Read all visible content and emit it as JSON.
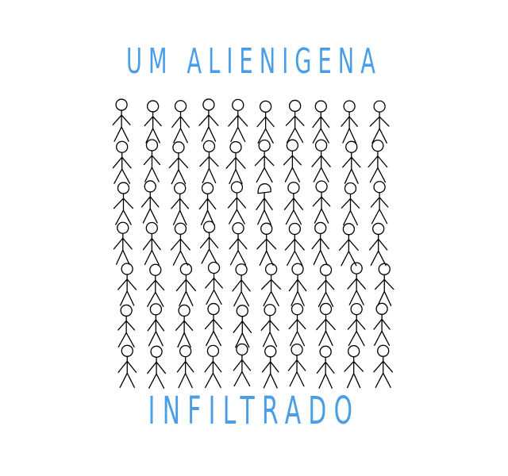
{
  "title_top": "UM ALIENIGENA",
  "title_bottom": "INFILTRADO",
  "colors": {
    "title": "#4a9ee8",
    "figure_stroke": "#000000",
    "background": "#ffffff"
  },
  "crowd": {
    "rows": 7,
    "columns": 10,
    "alien": {
      "row": 3,
      "column": 6
    }
  }
}
